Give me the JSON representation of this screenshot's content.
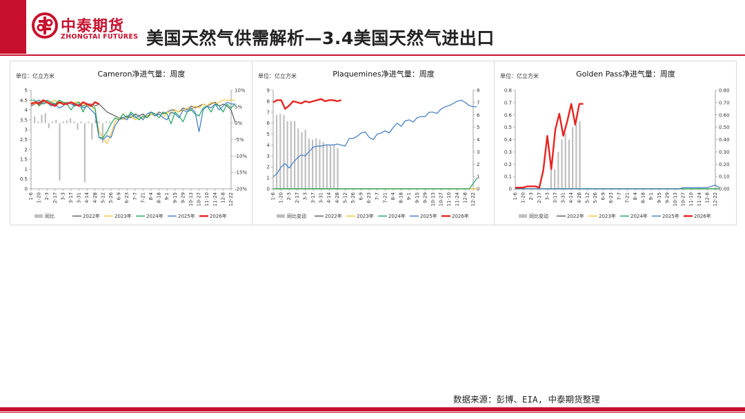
{
  "brand": {
    "name_cn": "中泰期货",
    "name_en": "ZHONGTAI FUTURES",
    "accent": "#c8102e"
  },
  "slide": {
    "title": "美国天然气供需解析—3.4美国天然气进出口"
  },
  "footer": {
    "source": "数据来源：彭博、EIA, 中泰期货整理"
  },
  "colors": {
    "bar": "#bfbfbf",
    "s2022": "#595959",
    "s2023": "#f2c12e",
    "s2024": "#1aa35b",
    "s2025": "#3a78c2",
    "s2026": "#e8231f"
  },
  "chart_data": [
    {
      "type": "line",
      "title": "Cameron净进气量：周度",
      "unit": "单位：亿立方米",
      "x_ticks": [
        "1-6",
        "1-20",
        "2-3",
        "2-17",
        "3-3",
        "3-17",
        "3-31",
        "4-14",
        "4-28",
        "5-12",
        "5-26",
        "6-9",
        "6-23",
        "7-7",
        "7-21",
        "8-4",
        "8-18",
        "9-1",
        "9-15",
        "9-29",
        "10-13",
        "10-27",
        "11-10",
        "11-24",
        "12-8",
        "12-22"
      ],
      "y_left": [
        0,
        5
      ],
      "y_left_ticks": [
        "0",
        "0.5",
        "1",
        "1.5",
        "2",
        "2.5",
        "3",
        "3.5",
        "4",
        "4.5",
        "5"
      ],
      "y_right": [
        -20,
        10
      ],
      "y_right_ticks": [
        "-20%",
        "-15%",
        "-10%",
        "-5%",
        "0%",
        "5%",
        "10%"
      ],
      "bar_legend": "同比",
      "bars_right": [
        2.0,
        0.5,
        2.5,
        3.0,
        -1.5,
        0.5,
        1.0,
        -17.5,
        0.5,
        0.8,
        1.5,
        0.5,
        -2.0,
        0.5,
        -18.0,
        0.5,
        -5.0,
        1.0,
        0.5,
        -6.0,
        0.5,
        0.5
      ],
      "series": [
        {
          "name": "2022年",
          "color_key": "s2022",
          "x": [
            0,
            0.5,
            1,
            1.5,
            2,
            2.5,
            3,
            3.5,
            4,
            4.5,
            5,
            5.5,
            6,
            6.5,
            7,
            7.5,
            8,
            8.5,
            9,
            9.5,
            10,
            10.5,
            11,
            11.5,
            12,
            12.5,
            13,
            13.5,
            14,
            14.5,
            15,
            15.5,
            16,
            16.5,
            17,
            17.5,
            18,
            18.5,
            19,
            19.5,
            20,
            20.5,
            21,
            21.5,
            22,
            22.5,
            23,
            23.5,
            24,
            24.5,
            25,
            25.5
          ],
          "values": [
            4.2,
            4.3,
            4.4,
            4.3,
            4.4,
            4.3,
            4.3,
            4.4,
            4.4,
            4.3,
            4.4,
            4.2,
            4.3,
            4.2,
            4.3,
            4.3,
            4.2,
            4.3,
            4.1,
            3.9,
            3.8,
            3.7,
            3.6,
            3.6,
            3.7,
            3.6,
            3.8,
            3.7,
            3.8,
            3.6,
            3.8,
            3.7,
            3.9,
            3.8,
            3.9,
            4.0,
            4.0,
            3.9,
            4.1,
            4.0,
            4.2,
            4.1,
            4.2,
            4.3,
            4.2,
            4.3,
            4.4,
            4.2,
            4.3,
            4.2,
            4.0,
            3.4
          ]
        },
        {
          "name": "2023年",
          "color_key": "s2023",
          "x": [
            0,
            0.5,
            1,
            1.5,
            2,
            2.5,
            3,
            3.5,
            4,
            4.5,
            5,
            5.5,
            6,
            6.5,
            7,
            7.5,
            8,
            8.5,
            9,
            9.5,
            10,
            10.5,
            11,
            11.5,
            12,
            12.5,
            13,
            13.5,
            14,
            14.5,
            15,
            15.5,
            16,
            16.5,
            17,
            17.5,
            18,
            18.5,
            19,
            19.5,
            20,
            20.5,
            21,
            21.5,
            22,
            22.5,
            23,
            23.5,
            24,
            24.5,
            25,
            25.5
          ],
          "values": [
            4.4,
            4.3,
            4.5,
            4.4,
            4.3,
            4.4,
            4.5,
            4.3,
            4.4,
            4.4,
            4.3,
            4.4,
            4.4,
            4.3,
            4.2,
            4.2,
            4.0,
            2.9,
            2.6,
            2.3,
            2.8,
            3.4,
            3.6,
            3.5,
            3.6,
            3.7,
            3.5,
            3.6,
            3.6,
            3.7,
            3.8,
            3.7,
            3.8,
            3.6,
            3.9,
            3.8,
            4.0,
            3.9,
            4.0,
            4.1,
            4.0,
            4.2,
            4.1,
            4.3,
            4.2,
            4.4,
            4.3,
            4.4,
            4.5,
            4.5,
            4.5,
            4.5
          ]
        },
        {
          "name": "2024年",
          "color_key": "s2024",
          "x": [
            0,
            0.5,
            1,
            1.5,
            2,
            2.5,
            3,
            3.5,
            4,
            4.5,
            5,
            5.5,
            6,
            6.5,
            7,
            7.5,
            8,
            8.5,
            9,
            9.5,
            10,
            10.5,
            11,
            11.5,
            12,
            12.5,
            13,
            13.5,
            14,
            14.5,
            15,
            15.5,
            16,
            16.5,
            17,
            17.5,
            18,
            18.5,
            19,
            19.5,
            20,
            20.5,
            21,
            21.5,
            22,
            22.5,
            23,
            23.5,
            24,
            24.5,
            25,
            25.5
          ],
          "values": [
            4.5,
            4.5,
            4.2,
            4.4,
            4.5,
            4.4,
            4.3,
            4.5,
            4.4,
            4.3,
            4.0,
            4.3,
            4.4,
            3.9,
            4.3,
            4.2,
            4.1,
            2.6,
            2.6,
            2.9,
            3.3,
            3.6,
            3.5,
            3.8,
            3.6,
            3.9,
            3.7,
            3.5,
            3.7,
            3.6,
            3.9,
            3.8,
            3.6,
            3.9,
            3.8,
            3.3,
            3.9,
            3.7,
            3.4,
            3.9,
            4.0,
            3.8,
            3.7,
            4.1,
            4.2,
            3.9,
            4.3,
            4.2,
            3.9,
            4.3,
            4.1,
            4.3
          ]
        },
        {
          "name": "2025年",
          "color_key": "s2025",
          "x": [
            0,
            0.5,
            1,
            1.5,
            2,
            2.5,
            3,
            3.5,
            4,
            4.5,
            5,
            5.5,
            6,
            6.5,
            7,
            7.5,
            8,
            8.5,
            9,
            9.5,
            10,
            10.5,
            11,
            11.5,
            12,
            12.5,
            13,
            13.5,
            14,
            14.5,
            15,
            15.5,
            16,
            16.5,
            17,
            17.5,
            18,
            18.5,
            19,
            19.5,
            20,
            20.5,
            21,
            21.5,
            22,
            22.5,
            23,
            23.5,
            24,
            24.5,
            25,
            25.5
          ],
          "values": [
            4.3,
            4.4,
            4.5,
            4.3,
            4.4,
            4.2,
            4.3,
            4.1,
            4.2,
            4.4,
            4.3,
            4.2,
            4.3,
            4.1,
            4.2,
            4.0,
            3.8,
            2.6,
            2.5,
            2.7,
            2.6,
            3.2,
            3.5,
            3.6,
            3.5,
            3.8,
            3.6,
            3.7,
            3.5,
            3.8,
            3.9,
            3.7,
            3.8,
            3.6,
            3.5,
            3.9,
            3.8,
            3.6,
            4.0,
            3.9,
            4.1,
            3.9,
            2.9,
            4.0,
            4.2,
            4.1,
            4.3,
            4.0,
            4.2,
            4.4,
            4.3,
            4.3
          ]
        },
        {
          "name": "2026年",
          "color_key": "s2026",
          "x": [
            0,
            0.5,
            1,
            1.5,
            2,
            2.5,
            3,
            3.5,
            4,
            4.5,
            5,
            5.5,
            6,
            6.5,
            7,
            7.5,
            8,
            8.5
          ],
          "values": [
            4.3,
            4.4,
            4.3,
            4.5,
            4.4,
            4.3,
            4.2,
            4.4,
            4.3,
            4.3,
            4.4,
            4.3,
            4.2,
            4.4,
            4.3,
            4.2,
            4.4,
            4.3
          ]
        }
      ]
    },
    {
      "type": "line",
      "title": "Plaquemines净进气量：周度",
      "unit": "单位：亿立方米",
      "x_ticks": [
        "1-6",
        "1-20",
        "2-3",
        "2-17",
        "3-3",
        "3-17",
        "3-31",
        "4-14",
        "4-28",
        "5-12",
        "5-26",
        "6-9",
        "6-23",
        "7-7",
        "7-21",
        "8-4",
        "8-18",
        "9-1",
        "9-15",
        "9-29",
        "10-13",
        "10-27",
        "11-10",
        "11-24",
        "12-8",
        "12-22"
      ],
      "y_left": [
        0,
        9
      ],
      "y_left_ticks": [
        "0",
        "1",
        "2",
        "3",
        "4",
        "5",
        "6",
        "7",
        "8",
        "9"
      ],
      "y_right": [
        0,
        8
      ],
      "y_right_ticks": [
        "0",
        "1",
        "2",
        "3",
        "4",
        "5",
        "6",
        "7",
        "8"
      ],
      "bar_legend": "同比变动",
      "bars_right": [
        6.0,
        6.1,
        6.0,
        5.5,
        5.5,
        5.5,
        4.9,
        4.6,
        4.8,
        4.1,
        4.0,
        4.1,
        4.0,
        3.8,
        3.6,
        3.5,
        3.6,
        3.3
      ],
      "series": [
        {
          "name": "2022年",
          "color_key": "s2022",
          "x": [
            0,
            25.5
          ],
          "values": [
            0,
            0
          ]
        },
        {
          "name": "2023年",
          "color_key": "s2023",
          "x": [
            0,
            25.5
          ],
          "values": [
            0,
            0
          ]
        },
        {
          "name": "2024年",
          "color_key": "s2024",
          "x": [
            0,
            24.5,
            25,
            25.5
          ],
          "values": [
            0,
            0,
            0.5,
            1.0
          ]
        },
        {
          "name": "2025年",
          "color_key": "s2025",
          "x": [
            0,
            0.5,
            1,
            1.5,
            2,
            2.5,
            3,
            3.5,
            4,
            4.5,
            5,
            5.5,
            6,
            6.5,
            7,
            7.5,
            8,
            8.5,
            9,
            9.5,
            10,
            10.5,
            11,
            11.5,
            12,
            12.5,
            13,
            13.5,
            14,
            14.5,
            15,
            15.5,
            16,
            16.5,
            17,
            17.5,
            18,
            18.5,
            19,
            19.5,
            20,
            20.5,
            21,
            21.5,
            22,
            22.5,
            23,
            23.5,
            24,
            24.5,
            25,
            25.5
          ],
          "values": [
            1.1,
            1.4,
            2.0,
            2.3,
            1.9,
            2.4,
            2.8,
            3.1,
            3.0,
            3.4,
            3.8,
            3.9,
            3.9,
            4.0,
            4.0,
            4.0,
            4.1,
            4.0,
            3.9,
            4.6,
            4.6,
            4.8,
            5.1,
            5.2,
            4.7,
            4.5,
            5.0,
            5.1,
            5.3,
            5.1,
            5.6,
            6.0,
            5.7,
            6.2,
            6.3,
            6.1,
            6.5,
            6.6,
            6.6,
            7.0,
            7.0,
            6.9,
            7.3,
            7.5,
            7.6,
            7.8,
            8.0,
            8.1,
            7.9,
            7.6,
            7.5,
            7.5
          ]
        },
        {
          "name": "2026年",
          "color_key": "s2026",
          "x": [
            0,
            0.5,
            1,
            1.5,
            2,
            2.5,
            3,
            3.5,
            4,
            4.5,
            5,
            5.5,
            6,
            6.5,
            7,
            7.5,
            8,
            8.5
          ],
          "values": [
            7.9,
            8.1,
            8.1,
            7.3,
            7.6,
            8.0,
            7.9,
            7.8,
            8.0,
            7.9,
            8.0,
            8.1,
            8.2,
            8.0,
            8.1,
            8.1,
            8.0,
            8.1
          ]
        }
      ]
    },
    {
      "type": "line",
      "title": "Golden Pass净进气量：周度",
      "unit": "单位：亿立方米",
      "x_ticks": [
        "1-6",
        "1-20",
        "2-3",
        "2-17",
        "3-3",
        "3-17",
        "3-31",
        "4-14",
        "4-28",
        "5-12",
        "5-26",
        "6-9",
        "6-23",
        "7-7",
        "7-21",
        "8-4",
        "8-18",
        "9-1",
        "9-15",
        "9-29",
        "10-13",
        "10-27",
        "11-10",
        "11-24",
        "12-8",
        "12-22"
      ],
      "y_left": [
        0,
        0.8
      ],
      "y_left_ticks": [
        "0",
        "0.1",
        "0.2",
        "0.3",
        "0.4",
        "0.5",
        "0.6",
        "0.7",
        "0.8"
      ],
      "y_right": [
        0,
        0.8
      ],
      "y_right_ticks": [
        "0.00",
        "0.10",
        "0.20",
        "0.30",
        "0.40",
        "0.50",
        "0.60",
        "0.70",
        "0.80"
      ],
      "bar_legend": "同比变动",
      "bars_right": [
        0.0,
        0.0,
        0.0,
        0.0,
        0.0,
        0.0,
        0.0,
        0.0,
        0.0,
        0.2,
        0.16,
        0.3,
        0.4,
        0.45,
        0.4,
        0.5,
        0.52,
        0.55
      ],
      "series": [
        {
          "name": "2022年",
          "color_key": "s2022",
          "x": [
            0,
            25.5
          ],
          "values": [
            0,
            0
          ]
        },
        {
          "name": "2023年",
          "color_key": "s2023",
          "x": [
            0,
            25.5
          ],
          "values": [
            0,
            0
          ]
        },
        {
          "name": "2024年",
          "color_key": "s2024",
          "x": [
            0,
            25.5
          ],
          "values": [
            0,
            0
          ]
        },
        {
          "name": "2025年",
          "color_key": "s2025",
          "x": [
            0,
            0.5,
            1,
            1.5,
            2,
            2.5,
            3,
            3.5,
            4,
            4.5,
            5,
            5.5,
            6,
            6.5,
            7,
            7.5,
            8,
            8.5,
            9,
            9.5,
            10,
            10.5,
            11,
            11.5,
            12,
            12.5,
            13,
            13.5,
            14,
            14.5,
            15,
            15.5,
            16,
            16.5,
            17,
            17.5,
            18,
            18.5,
            19,
            19.5,
            20,
            20.5,
            21,
            21.5,
            22,
            22.5,
            23,
            23.5,
            24,
            24.5,
            25,
            25.5
          ],
          "values": [
            0,
            0,
            0,
            0,
            0,
            0,
            0,
            0,
            0,
            0,
            0,
            0,
            0,
            0,
            0,
            0,
            0,
            0,
            0,
            0,
            0,
            0,
            0,
            0,
            0,
            0,
            0,
            0,
            0,
            0,
            0,
            0,
            0,
            0,
            0,
            0,
            0,
            0,
            0,
            0,
            0,
            0,
            0.01,
            0.01,
            0.01,
            0.01,
            0.01,
            0.01,
            0.01,
            0.02,
            0.03,
            0.01
          ]
        },
        {
          "name": "2026年",
          "color_key": "s2026",
          "x": [
            0,
            0.5,
            1,
            1.5,
            2,
            2.5,
            3,
            3.5,
            4,
            4.5,
            5,
            5.5,
            6,
            6.5,
            7,
            7.5,
            8,
            8.5
          ],
          "values": [
            0.01,
            0.01,
            0.01,
            0.02,
            0.02,
            0.02,
            0.01,
            0.15,
            0.43,
            0.16,
            0.48,
            0.61,
            0.43,
            0.55,
            0.69,
            0.52,
            0.69,
            0.69
          ]
        }
      ]
    }
  ]
}
